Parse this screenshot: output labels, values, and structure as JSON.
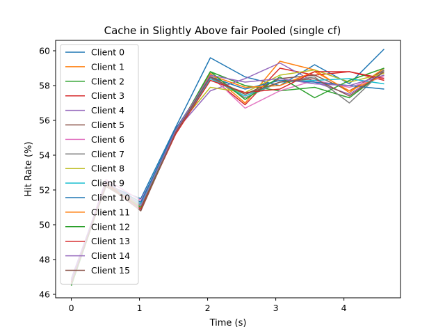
{
  "chart_data": {
    "type": "line",
    "title": "Cache in Slightly Above fair Pooled (single cf)",
    "xlabel": "Time (s)",
    "ylabel": "Hit Rate (%)",
    "xlim": [
      -0.23,
      4.83
    ],
    "ylim": [
      45.8,
      60.6
    ],
    "xticks": [
      0,
      1,
      2,
      3,
      4
    ],
    "yticks": [
      46,
      48,
      50,
      52,
      54,
      56,
      58,
      60
    ],
    "grid": false,
    "legend_position": "upper-left",
    "x": [
      0,
      0.51,
      1.02,
      1.53,
      2.04,
      2.55,
      3.06,
      3.57,
      4.08,
      4.59
    ],
    "series": [
      {
        "name": "Client 0",
        "color": "#1f77b4",
        "values": [
          46.8,
          52.3,
          51.5,
          55.6,
          59.6,
          58.5,
          58.0,
          59.2,
          58.1,
          60.1
        ]
      },
      {
        "name": "Client 1",
        "color": "#ff7f0e",
        "values": [
          46.7,
          52.4,
          51.2,
          55.4,
          58.7,
          57.0,
          59.4,
          58.9,
          57.6,
          59.0
        ]
      },
      {
        "name": "Client 2",
        "color": "#2ca02c",
        "values": [
          46.5,
          52.5,
          51.0,
          55.3,
          58.8,
          58.0,
          57.7,
          57.9,
          57.3,
          58.8
        ]
      },
      {
        "name": "Client 3",
        "color": "#d62728",
        "values": [
          46.6,
          52.3,
          51.1,
          55.5,
          58.5,
          56.9,
          59.0,
          58.6,
          58.8,
          58.3
        ]
      },
      {
        "name": "Client 4",
        "color": "#9467bd",
        "values": [
          46.9,
          52.4,
          51.3,
          55.4,
          57.7,
          58.4,
          59.3,
          58.2,
          57.5,
          58.8
        ]
      },
      {
        "name": "Client 5",
        "color": "#8c564b",
        "values": [
          46.8,
          52.2,
          51.0,
          55.3,
          58.4,
          57.5,
          58.4,
          58.6,
          57.7,
          58.9
        ]
      },
      {
        "name": "Client 6",
        "color": "#e377c2",
        "values": [
          46.7,
          52.6,
          51.4,
          55.2,
          58.6,
          56.7,
          57.7,
          58.3,
          57.9,
          58.5
        ]
      },
      {
        "name": "Client 7",
        "color": "#7f7f7f",
        "values": [
          46.6,
          52.5,
          50.8,
          55.4,
          58.5,
          57.3,
          58.2,
          58.5,
          57.0,
          58.9
        ]
      },
      {
        "name": "Client 8",
        "color": "#bcbd22",
        "values": [
          46.8,
          52.4,
          51.0,
          55.5,
          57.9,
          57.6,
          58.6,
          58.9,
          58.2,
          58.7
        ]
      },
      {
        "name": "Client 9",
        "color": "#17becf",
        "values": [
          46.7,
          52.3,
          51.2,
          55.3,
          58.4,
          57.4,
          58.2,
          58.3,
          58.4,
          58.1
        ]
      },
      {
        "name": "Client 10",
        "color": "#1f77b4",
        "values": [
          46.8,
          52.4,
          51.3,
          55.5,
          58.5,
          57.8,
          58.3,
          58.2,
          58.0,
          57.8
        ]
      },
      {
        "name": "Client 11",
        "color": "#ff7f0e",
        "values": [
          46.6,
          52.5,
          51.1,
          55.4,
          58.6,
          57.9,
          58.0,
          58.8,
          57.7,
          58.6
        ]
      },
      {
        "name": "Client 12",
        "color": "#2ca02c",
        "values": [
          46.5,
          52.3,
          51.0,
          55.3,
          58.8,
          57.2,
          58.5,
          57.3,
          58.3,
          59.0
        ]
      },
      {
        "name": "Client 13",
        "color": "#d62728",
        "values": [
          46.7,
          52.4,
          50.9,
          55.2,
          58.3,
          57.6,
          57.8,
          58.8,
          58.8,
          58.4
        ]
      },
      {
        "name": "Client 14",
        "color": "#9467bd",
        "values": [
          46.8,
          52.5,
          51.1,
          55.4,
          58.6,
          58.2,
          58.4,
          58.1,
          58.0,
          58.6
        ]
      },
      {
        "name": "Client 15",
        "color": "#8c564b",
        "values": [
          46.6,
          52.3,
          50.8,
          55.3,
          58.5,
          57.5,
          58.2,
          58.4,
          57.4,
          58.8
        ]
      }
    ]
  }
}
